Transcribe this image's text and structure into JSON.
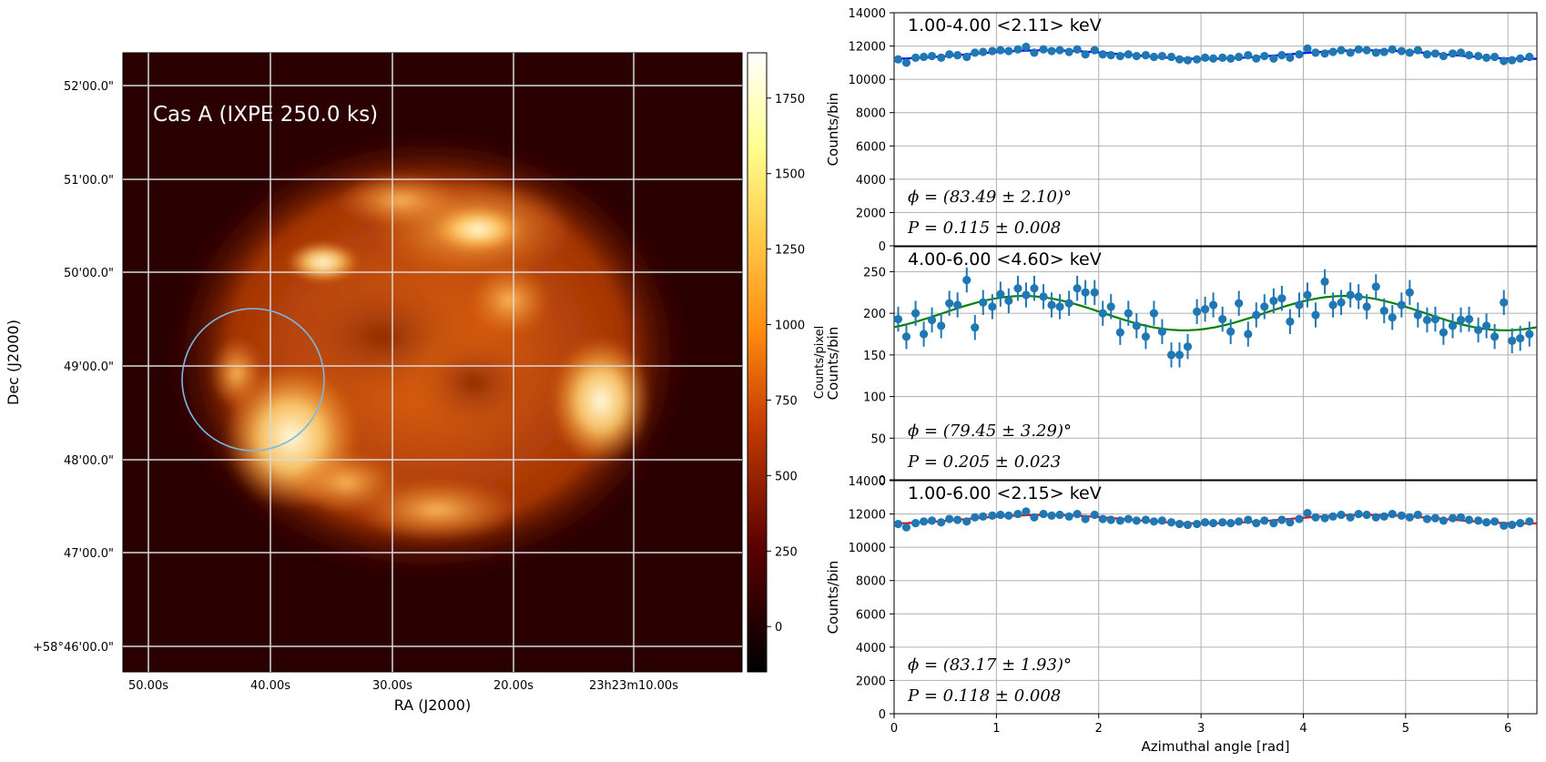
{
  "image_panel": {
    "title": "Cas A (IXPE 250.0 ks)",
    "xlabel": "RA (J2000)",
    "ylabel": "Dec (J2000)",
    "ra_ticks": [
      "50.00s",
      "40.00s",
      "30.00s",
      "20.00s",
      "23h23m10.00s"
    ],
    "dec_ticks": [
      "52'00.0\"",
      "51'00.0\"",
      "50'00.0\"",
      "49'00.0\"",
      "48'00.0\"",
      "47'00.0\"",
      "+58°46'00.0\""
    ],
    "colorbar": {
      "label": "Counts/pixel",
      "ticks": [
        0,
        250,
        500,
        750,
        1000,
        1250,
        1500,
        1750
      ],
      "range": [
        -150,
        1900
      ],
      "colormap": "afmhot"
    },
    "region_color": "#7ab8e6"
  },
  "chart_data": [
    {
      "type": "scatter",
      "title": "1.00-4.00 <2.11> keV",
      "xlabel": "",
      "ylabel": "Counts/bin",
      "xlim": [
        0,
        6.283
      ],
      "ylim": [
        0,
        14000
      ],
      "yticks": [
        0,
        2000,
        4000,
        6000,
        8000,
        10000,
        12000,
        14000
      ],
      "fit_color": "#0000ff",
      "phi_text": "ϕ = (83.49 ± 2.10)°",
      "p_text": "P = 0.115 ± 0.008",
      "series": [
        {
          "x": [
            0.04,
            0.12,
            0.21,
            0.29,
            0.37,
            0.46,
            0.54,
            0.62,
            0.71,
            0.79,
            0.87,
            0.96,
            1.04,
            1.12,
            1.21,
            1.29,
            1.37,
            1.46,
            1.54,
            1.62,
            1.71,
            1.79,
            1.87,
            1.96,
            2.04,
            2.12,
            2.21,
            2.29,
            2.37,
            2.46,
            2.54,
            2.62,
            2.71,
            2.79,
            2.87,
            2.96,
            3.04,
            3.12,
            3.21,
            3.29,
            3.37,
            3.46,
            3.54,
            3.62,
            3.71,
            3.79,
            3.87,
            3.96,
            4.04,
            4.12,
            4.21,
            4.29,
            4.37,
            4.46,
            4.54,
            4.62,
            4.71,
            4.79,
            4.87,
            4.96,
            5.04,
            5.12,
            5.21,
            5.29,
            5.37,
            5.46,
            5.54,
            5.62,
            5.71,
            5.79,
            5.87,
            5.96,
            6.04,
            6.12,
            6.21
          ],
          "y": [
            11200,
            11000,
            11300,
            11350,
            11400,
            11300,
            11500,
            11450,
            11350,
            11600,
            11650,
            11700,
            11750,
            11700,
            11800,
            11950,
            11600,
            11800,
            11700,
            11750,
            11650,
            11800,
            11500,
            11750,
            11500,
            11450,
            11400,
            11500,
            11400,
            11450,
            11350,
            11400,
            11350,
            11200,
            11150,
            11200,
            11300,
            11250,
            11300,
            11250,
            11350,
            11450,
            11250,
            11400,
            11250,
            11450,
            11300,
            11500,
            11850,
            11600,
            11550,
            11650,
            11750,
            11600,
            11800,
            11750,
            11600,
            11650,
            11800,
            11700,
            11600,
            11750,
            11500,
            11550,
            11400,
            11550,
            11600,
            11450,
            11400,
            11300,
            11350,
            11100,
            11150,
            11250,
            11350
          ],
          "yerr": 110
        }
      ]
    },
    {
      "type": "scatter",
      "title": "4.00-6.00 <4.60> keV",
      "xlabel": "",
      "ylabel": "Counts/bin",
      "xlim": [
        0,
        6.283
      ],
      "ylim": [
        0,
        280
      ],
      "yticks": [
        0,
        50,
        100,
        150,
        200,
        250
      ],
      "fit_color": "#008000",
      "phi_text": "ϕ = (79.45 ± 3.29)°",
      "p_text": "P = 0.205 ± 0.023",
      "series": [
        {
          "x": [
            0.04,
            0.12,
            0.21,
            0.29,
            0.37,
            0.46,
            0.54,
            0.62,
            0.71,
            0.79,
            0.87,
            0.96,
            1.04,
            1.12,
            1.21,
            1.29,
            1.37,
            1.46,
            1.54,
            1.62,
            1.71,
            1.79,
            1.87,
            1.96,
            2.04,
            2.12,
            2.21,
            2.29,
            2.37,
            2.46,
            2.54,
            2.62,
            2.71,
            2.79,
            2.87,
            2.96,
            3.04,
            3.12,
            3.21,
            3.29,
            3.37,
            3.46,
            3.54,
            3.62,
            3.71,
            3.79,
            3.87,
            3.96,
            4.04,
            4.12,
            4.21,
            4.29,
            4.37,
            4.46,
            4.54,
            4.62,
            4.71,
            4.79,
            4.87,
            4.96,
            5.04,
            5.12,
            5.21,
            5.29,
            5.37,
            5.46,
            5.54,
            5.62,
            5.71,
            5.79,
            5.87,
            5.96,
            6.04,
            6.12,
            6.21
          ],
          "y": [
            193,
            172,
            200,
            175,
            192,
            185,
            212,
            210,
            240,
            183,
            213,
            208,
            223,
            215,
            230,
            222,
            230,
            220,
            210,
            208,
            212,
            230,
            225,
            225,
            200,
            208,
            177,
            200,
            185,
            172,
            200,
            178,
            150,
            150,
            160,
            202,
            205,
            210,
            193,
            178,
            212,
            175,
            198,
            208,
            215,
            218,
            190,
            210,
            222,
            198,
            238,
            210,
            213,
            222,
            220,
            208,
            232,
            203,
            195,
            210,
            225,
            198,
            192,
            193,
            177,
            185,
            192,
            193,
            180,
            185,
            172,
            213,
            167,
            170,
            175
          ],
          "yerr": 15
        }
      ]
    },
    {
      "type": "scatter",
      "title": "1.00-6.00 <2.15> keV",
      "xlabel": "Azimuthal angle [rad]",
      "ylabel": "Counts/bin",
      "xlim": [
        0,
        6.283
      ],
      "ylim": [
        0,
        14000
      ],
      "yticks": [
        0,
        2000,
        4000,
        6000,
        8000,
        10000,
        12000,
        14000
      ],
      "xticks": [
        0,
        1,
        2,
        3,
        4,
        5,
        6
      ],
      "fit_color": "#ff0000",
      "phi_text": "ϕ = (83.17 ± 1.93)°",
      "p_text": "P = 0.118 ± 0.008",
      "series": [
        {
          "x": [
            0.04,
            0.12,
            0.21,
            0.29,
            0.37,
            0.46,
            0.54,
            0.62,
            0.71,
            0.79,
            0.87,
            0.96,
            1.04,
            1.12,
            1.21,
            1.29,
            1.37,
            1.46,
            1.54,
            1.62,
            1.71,
            1.79,
            1.87,
            1.96,
            2.04,
            2.12,
            2.21,
            2.29,
            2.37,
            2.46,
            2.54,
            2.62,
            2.71,
            2.79,
            2.87,
            2.96,
            3.04,
            3.12,
            3.21,
            3.29,
            3.37,
            3.46,
            3.54,
            3.62,
            3.71,
            3.79,
            3.87,
            3.96,
            4.04,
            4.12,
            4.21,
            4.29,
            4.37,
            4.46,
            4.54,
            4.62,
            4.71,
            4.79,
            4.87,
            4.96,
            5.04,
            5.12,
            5.21,
            5.29,
            5.37,
            5.46,
            5.54,
            5.62,
            5.71,
            5.79,
            5.87,
            5.96,
            6.04,
            6.12,
            6.21
          ],
          "y": [
            11400,
            11200,
            11450,
            11550,
            11600,
            11500,
            11700,
            11650,
            11550,
            11800,
            11850,
            11900,
            11950,
            11900,
            12000,
            12150,
            11800,
            12000,
            11900,
            11950,
            11850,
            12000,
            11700,
            11950,
            11700,
            11650,
            11600,
            11700,
            11600,
            11650,
            11550,
            11600,
            11500,
            11400,
            11350,
            11400,
            11500,
            11450,
            11500,
            11450,
            11550,
            11650,
            11450,
            11600,
            11450,
            11650,
            11500,
            11700,
            12050,
            11800,
            11750,
            11850,
            11950,
            11800,
            12000,
            11950,
            11800,
            11850,
            12000,
            11900,
            11800,
            11950,
            11700,
            11750,
            11600,
            11750,
            11800,
            11650,
            11600,
            11500,
            11550,
            11300,
            11350,
            11450,
            11550
          ],
          "yerr": 110
        }
      ]
    }
  ]
}
